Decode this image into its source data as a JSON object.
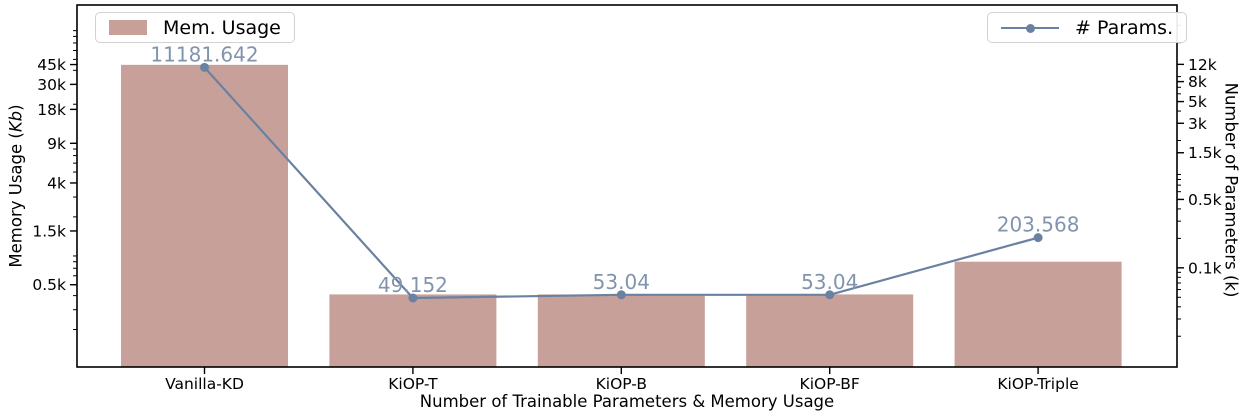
{
  "chart_data": {
    "type": "bar",
    "subtype": "bar+line combo, dual logarithmic y-axes",
    "title": "",
    "xlabel": "Number of Trainable Parameters & Memory Usage",
    "grid": false,
    "categories": [
      "Vanilla-KD",
      "KiOP-T",
      "KiOP-B",
      "KiOP-BF",
      "KiOP-Triple"
    ],
    "series": [
      {
        "name": "Mem. Usage",
        "type": "bar",
        "axis": "left",
        "unit": "Kb",
        "color": "#c7a099",
        "values": [
          44726.6,
          410,
          410,
          410,
          800
        ]
      },
      {
        "name": "# Params.",
        "type": "line",
        "axis": "right",
        "unit": "k",
        "color": "#6b81a1",
        "label_color": "#8294ad",
        "values": [
          11181.642,
          49.152,
          53.04,
          53.04,
          203.568
        ],
        "point_labels": [
          "11181.642",
          "49.152",
          "53.04",
          "53.04",
          "203.568"
        ]
      }
    ],
    "left_axis": {
      "label": "Memory Usage (Kb)",
      "label_prefix": "Memory Usage (",
      "label_unit": "Kb",
      "label_suffix": ")",
      "scale": "log",
      "range": [
        93,
        152000
      ],
      "ticks": [
        {
          "value": 45000,
          "label": "45k"
        },
        {
          "value": 30000,
          "label": "30k"
        },
        {
          "value": 18000,
          "label": "18k"
        },
        {
          "value": 9000,
          "label": "9k"
        },
        {
          "value": 4000,
          "label": "4k"
        },
        {
          "value": 1500,
          "label": "1.5k"
        },
        {
          "value": 500,
          "label": "0.5k"
        }
      ]
    },
    "right_axis": {
      "label": "Number of Parameters (k)",
      "scale": "log",
      "range": [
        9.7,
        48500
      ],
      "ticks": [
        {
          "value": 12000,
          "label": "12k"
        },
        {
          "value": 8000,
          "label": "8k"
        },
        {
          "value": 5000,
          "label": "5k"
        },
        {
          "value": 3000,
          "label": "3k"
        },
        {
          "value": 1500,
          "label": "1.5k"
        },
        {
          "value": 500,
          "label": "0.5k"
        },
        {
          "value": 100,
          "label": "0.1k"
        }
      ]
    },
    "legend": [
      {
        "label": "Mem. Usage",
        "loc": "upper left"
      },
      {
        "label": "# Params.",
        "loc": "upper right"
      }
    ]
  }
}
